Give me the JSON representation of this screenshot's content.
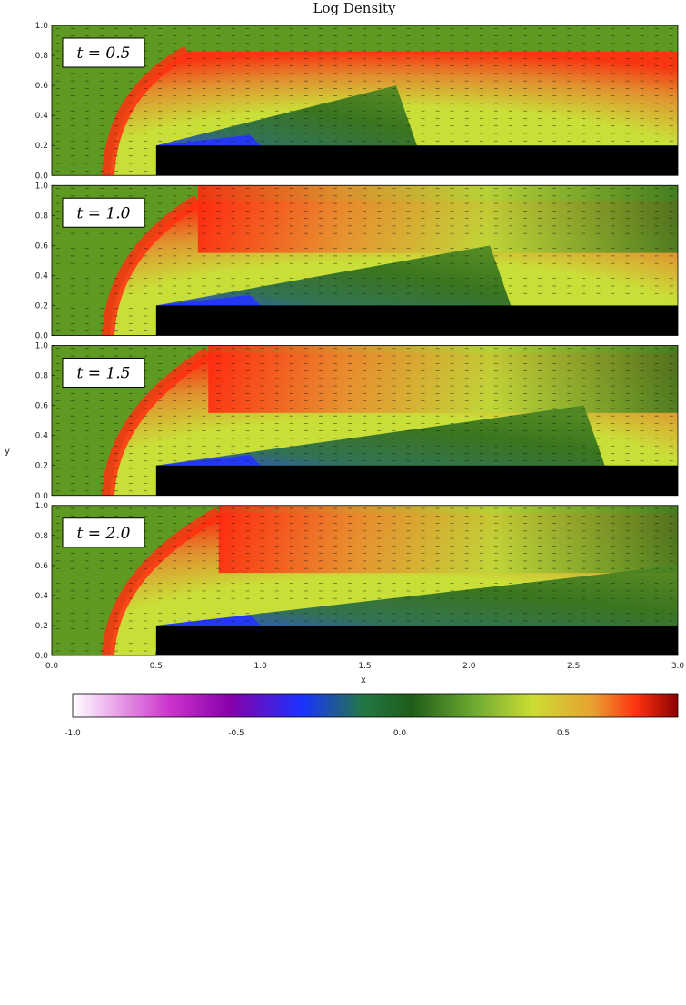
{
  "chart_data": {
    "type": "heatmap",
    "title": "Log Density",
    "xlabel": "x",
    "ylabel": "y",
    "xlim": [
      0.0,
      3.0
    ],
    "ylim": [
      0.0,
      1.0
    ],
    "x_ticks": [
      "0.0",
      "0.5",
      "1.0",
      "1.5",
      "2.0",
      "2.5",
      "3.0"
    ],
    "y_ticks": [
      "0.0",
      "0.2",
      "0.4",
      "0.6",
      "0.8",
      "1.0"
    ],
    "panels": [
      {
        "label": "t = 0.5",
        "time": 0.5
      },
      {
        "label": "t = 1.0",
        "time": 1.0
      },
      {
        "label": "t = 1.5",
        "time": 1.5
      },
      {
        "label": "t = 2.0",
        "time": 2.0
      }
    ],
    "obstacle": {
      "x_start": 0.5,
      "x_end": 3.0,
      "y_top": 0.2
    },
    "colorbar": {
      "ticks": [
        "-1.0",
        "-0.5",
        "0.0",
        "0.5"
      ],
      "range": [
        -1.0,
        0.85
      ],
      "colors": [
        "#ffffff",
        "#cc33cc",
        "#8800aa",
        "#1a33ff",
        "#227744",
        "#1f5c18",
        "#6aa830",
        "#ccdd33",
        "#e8a030",
        "#ff3311",
        "#8b0000"
      ]
    },
    "background_color": "#5e9a22"
  }
}
